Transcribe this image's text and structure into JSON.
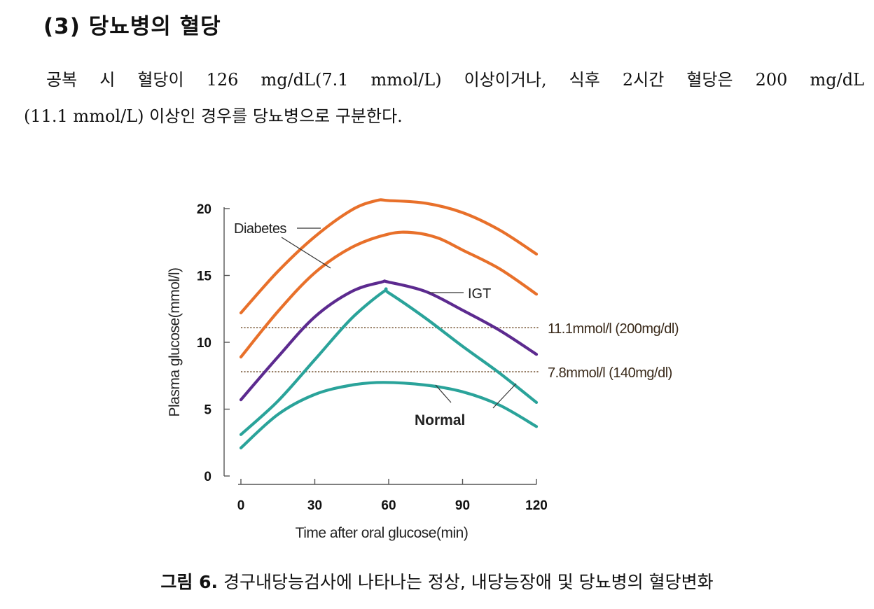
{
  "section": {
    "heading": "(3) 당뇨병의 혈당",
    "paragraph_line1": "공복 시 혈당이 126 mg/dL(7.1 mmol/L) 이상이거나, 식후 2시간 혈당은 200 mg/dL",
    "paragraph_line2": "(11.1 mmol/L) 이상인 경우를 당뇨병으로 구분한다."
  },
  "figure": {
    "label": "그림 6.",
    "caption": "경구내당능검사에 나타나는 정상, 내당능장애 및 당뇨병의 혈당변화"
  },
  "colors": {
    "diabetes": "#e8702a",
    "igt": "#5c2a8f",
    "normal": "#2aa39a",
    "threshold": "#7a5a3a",
    "axis": "#555555"
  },
  "chart_data": {
    "type": "line",
    "xlabel": "Time after oral glucose(min)",
    "ylabel": "Plasma glucose(mmol/l)",
    "xlim": [
      0,
      120
    ],
    "ylim": [
      0,
      20
    ],
    "x_ticks": [
      0,
      30,
      60,
      90,
      120
    ],
    "y_ticks": [
      0,
      5,
      10,
      15,
      20
    ],
    "series": [
      {
        "name": "Diabetes (upper)",
        "group": "diabetes",
        "x": [
          0,
          15,
          30,
          45,
          55,
          60,
          75,
          90,
          105,
          120
        ],
        "y": [
          12.2,
          15.3,
          17.9,
          19.9,
          20.6,
          20.6,
          20.4,
          19.7,
          18.4,
          16.6
        ]
      },
      {
        "name": "Diabetes (lower)",
        "group": "diabetes",
        "x": [
          0,
          15,
          30,
          45,
          60,
          70,
          80,
          90,
          105,
          120
        ],
        "y": [
          8.9,
          12.3,
          15.2,
          17.1,
          18.1,
          18.2,
          17.8,
          16.9,
          15.5,
          13.6
        ]
      },
      {
        "name": "IGT",
        "group": "igt",
        "x": [
          0,
          15,
          30,
          45,
          57,
          60,
          75,
          90,
          105,
          120
        ],
        "y": [
          5.7,
          8.9,
          11.9,
          13.8,
          14.5,
          14.5,
          13.8,
          12.4,
          10.9,
          9.1
        ]
      },
      {
        "name": "Normal (upper)",
        "group": "normal",
        "x": [
          0,
          15,
          30,
          45,
          58,
          60,
          75,
          90,
          105,
          120
        ],
        "y": [
          3.1,
          5.6,
          8.7,
          11.8,
          13.8,
          13.7,
          11.8,
          9.7,
          7.7,
          5.5
        ]
      },
      {
        "name": "Normal (lower)",
        "group": "normal",
        "x": [
          0,
          15,
          30,
          45,
          58,
          75,
          90,
          105,
          120
        ],
        "y": [
          2.1,
          4.6,
          6.1,
          6.8,
          7.0,
          6.8,
          6.3,
          5.3,
          3.7
        ]
      }
    ],
    "thresholds": [
      {
        "y": 11.1,
        "label": "11.1mmol/l (200mg/dl)"
      },
      {
        "y": 7.8,
        "label": "7.8mmol/l (140mg/dl)"
      }
    ],
    "annotations": {
      "diabetes": "Diabetes",
      "igt": "IGT",
      "normal": "Normal"
    }
  }
}
